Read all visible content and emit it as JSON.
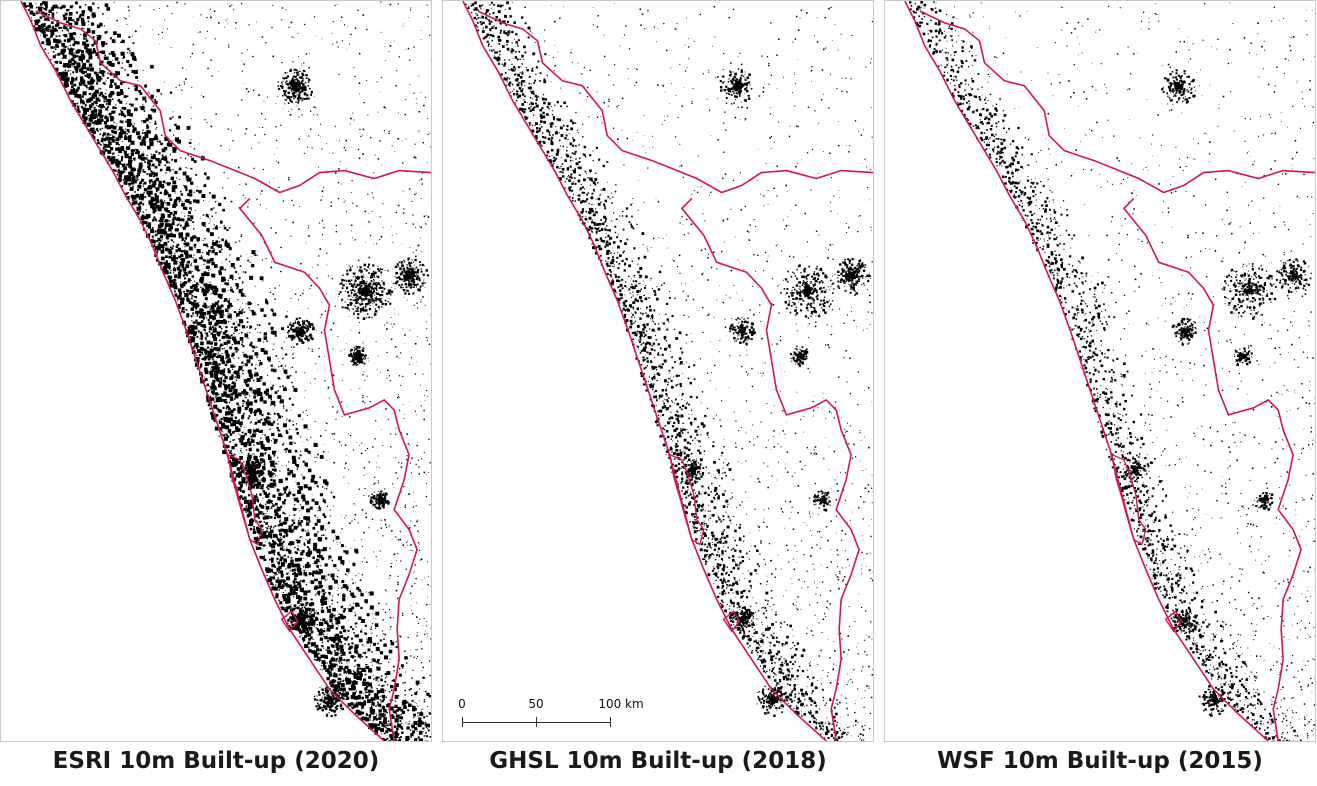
{
  "colors": {
    "boundary": "#d0174a",
    "builtup": "#000000",
    "background": "#ffffff",
    "panel_border": "#c8c8c8"
  },
  "panels": [
    {
      "id": "esri",
      "caption": "ESRI 10m Built-up (2020)",
      "density": 1.0
    },
    {
      "id": "ghsl",
      "caption": "GHSL 10m Built-up (2018)",
      "density": 0.45
    },
    {
      "id": "wsf",
      "caption": "WSF 10m Built-up (2015)",
      "density": 0.35
    }
  ],
  "scale_bar": {
    "labels": [
      "0",
      "50",
      "100 km"
    ],
    "values_km": [
      0,
      50,
      100
    ]
  }
}
